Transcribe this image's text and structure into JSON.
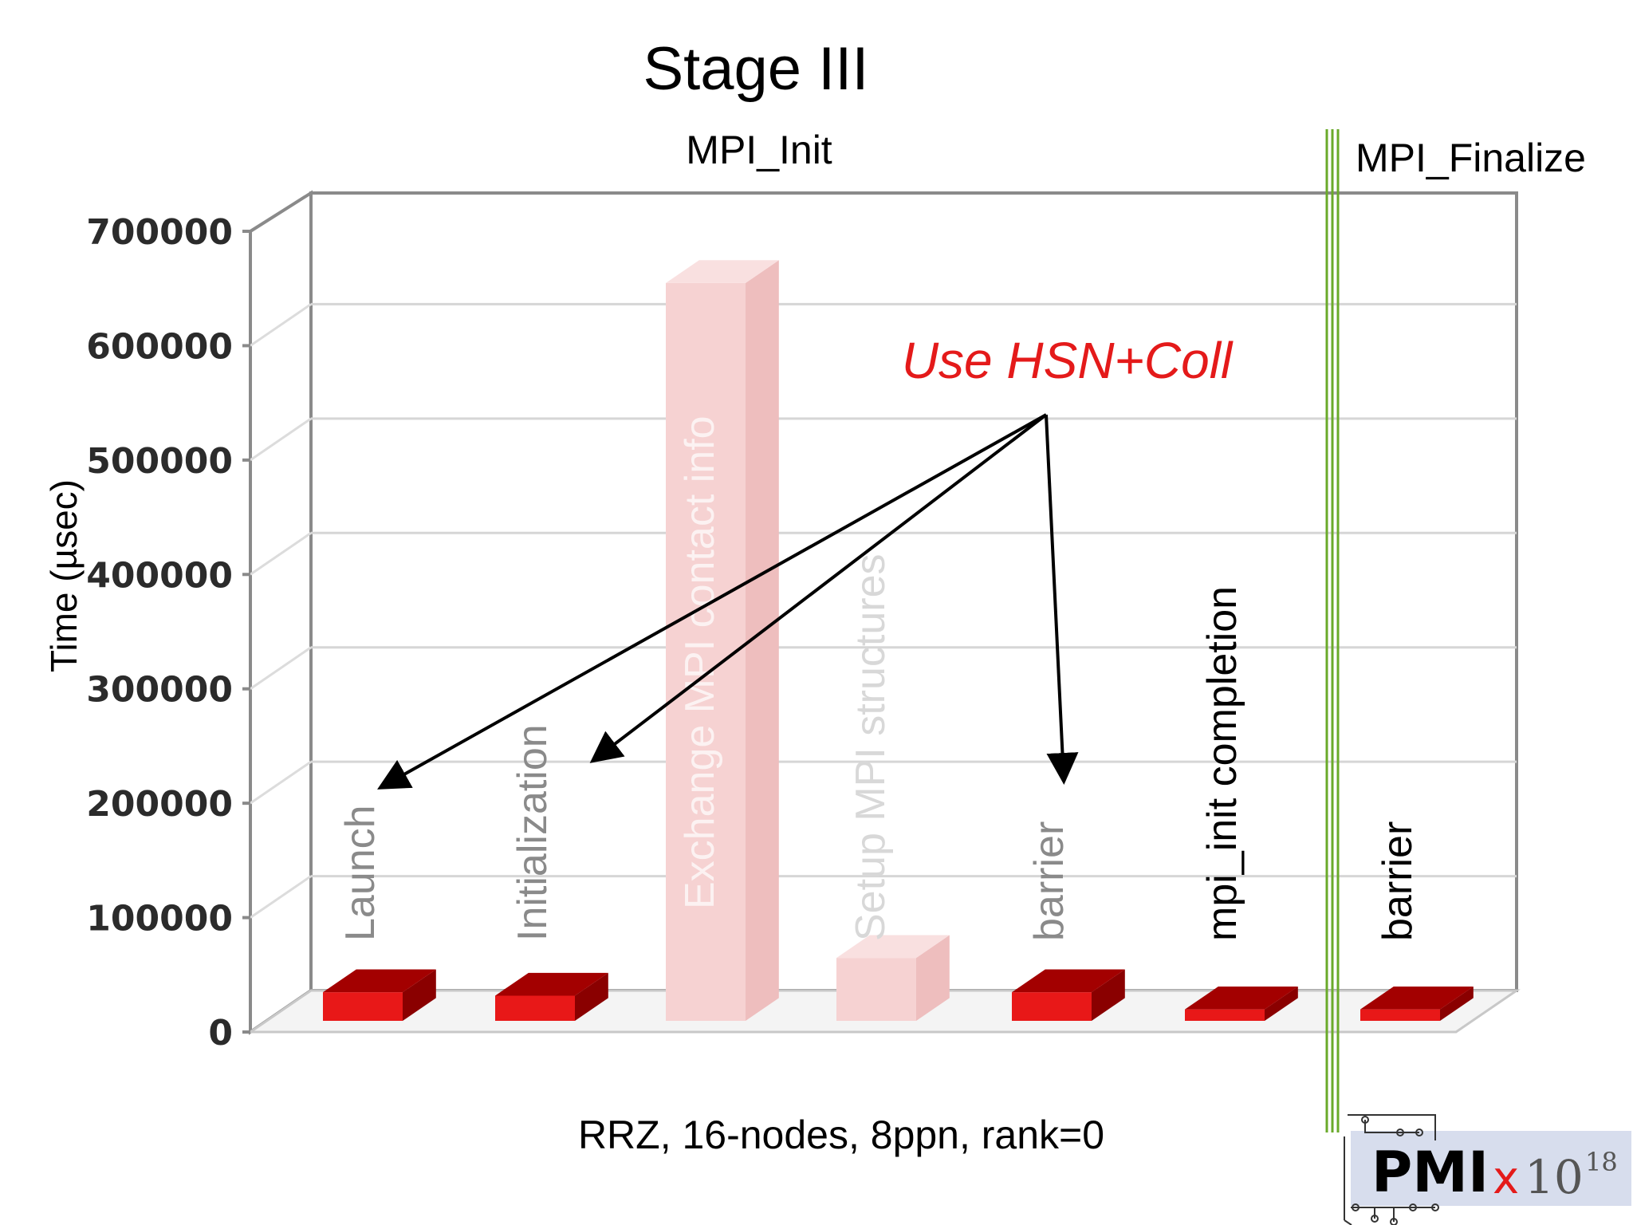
{
  "chart_data": {
    "type": "bar",
    "title": "Stage III",
    "ylabel": "Time (µsec)",
    "xlabel": "",
    "ylim": [
      0,
      700000
    ],
    "yticks": [
      "0",
      "100000",
      "200000",
      "300000",
      "400000",
      "500000",
      "600000",
      "700000"
    ],
    "grid": true,
    "sections": [
      {
        "name": "MPI_Init",
        "categories": [
          "Launch",
          "Initialization",
          "Exchange MPI contact info",
          "Setup MPI structures",
          "barrier",
          "mpi_init completion"
        ]
      },
      {
        "name": "MPI_Finalize",
        "categories": [
          "barrier"
        ]
      }
    ],
    "categories": [
      "Launch",
      "Initialization",
      "Exchange MPI contact info",
      "Setup MPI structures",
      "barrier",
      "mpi_init completion",
      "barrier"
    ],
    "values": [
      25000,
      22000,
      645000,
      55000,
      25000,
      10000,
      10000
    ],
    "faded": [
      false,
      false,
      true,
      true,
      false,
      false,
      false
    ],
    "annotation": {
      "text": "Use HSN+Coll",
      "points_to": [
        "Launch",
        "Initialization",
        "barrier"
      ]
    },
    "caption": "RRZ, 16-nodes, 8ppn, rank=0",
    "colors": {
      "bar_front": "#e81818",
      "bar_top": "#a30000",
      "bar_side": "#8a0000",
      "bar_faded": "#f6d2d2",
      "annotation": "#e41a1a",
      "divider": "#6aaa2a"
    }
  },
  "logo": {
    "main": "PMI",
    "x": "x",
    "base": "10",
    "exponent": "18"
  }
}
